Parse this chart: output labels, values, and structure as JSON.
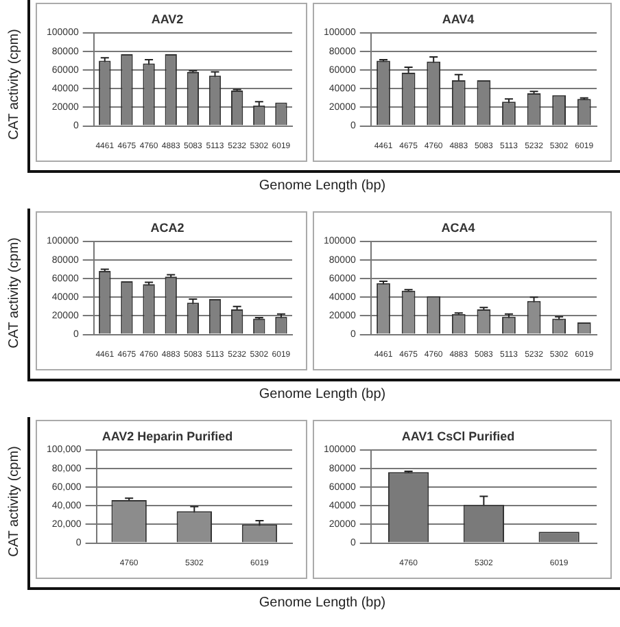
{
  "chart_data": [
    {
      "type": "bar",
      "title": "AAV2",
      "ylabel": "CAT activity (cpm)",
      "xlabel": "Genome Length (bp)",
      "categories": [
        "4461",
        "4675",
        "4760",
        "4883",
        "5083",
        "5113",
        "5232",
        "5302",
        "6019"
      ],
      "values": [
        70000,
        77000,
        67000,
        77000,
        58000,
        54000,
        38000,
        22000,
        25000
      ],
      "errors": [
        3000,
        null,
        4000,
        null,
        1000,
        4000,
        1000,
        4000,
        null
      ],
      "color": "#808080",
      "ylim": [
        0,
        100000
      ],
      "yticks": [
        0,
        20000,
        40000,
        60000,
        80000,
        100000
      ],
      "grid": "y"
    },
    {
      "type": "bar",
      "title": "AAV4",
      "categories": [
        "4461",
        "4675",
        "4760",
        "4883",
        "5083",
        "5113",
        "5232",
        "5302",
        "6019"
      ],
      "values": [
        70000,
        57000,
        69000,
        49000,
        49000,
        26000,
        35000,
        33000,
        29000
      ],
      "errors": [
        1000,
        6000,
        5000,
        6000,
        null,
        3000,
        2000,
        null,
        1000
      ],
      "color": "#808080",
      "ylim": [
        0,
        100000
      ],
      "yticks": [
        0,
        20000,
        40000,
        60000,
        80000,
        100000
      ],
      "grid": "y"
    },
    {
      "type": "bar",
      "title": "ACA2",
      "ylabel": "CAT activity (cpm)",
      "xlabel": "Genome Length (bp)",
      "categories": [
        "4461",
        "4675",
        "4760",
        "4883",
        "5083",
        "5113",
        "5232",
        "5302",
        "6019"
      ],
      "values": [
        68000,
        57000,
        54000,
        62000,
        34000,
        38000,
        27000,
        17000,
        19000
      ],
      "errors": [
        2000,
        null,
        2000,
        2000,
        4000,
        null,
        3000,
        1000,
        3000
      ],
      "color": "#808080",
      "ylim": [
        0,
        100000
      ],
      "yticks": [
        0,
        20000,
        40000,
        60000,
        80000,
        100000
      ],
      "grid": "y"
    },
    {
      "type": "bar",
      "title": "ACA4",
      "categories": [
        "4461",
        "4675",
        "4760",
        "4883",
        "5083",
        "5113",
        "5232",
        "5302",
        "6019"
      ],
      "values": [
        55000,
        47000,
        41000,
        22000,
        27000,
        19000,
        36000,
        17000,
        13000
      ],
      "errors": [
        2000,
        1000,
        null,
        1000,
        2000,
        3000,
        4000,
        2000,
        null
      ],
      "color": "#8c8c8c",
      "ylim": [
        0,
        100000
      ],
      "yticks": [
        0,
        20000,
        40000,
        60000,
        80000,
        100000
      ],
      "grid": "y"
    },
    {
      "type": "bar",
      "title": "AAV2 Heparin Purified",
      "ylabel": "CAT activity (cpm)",
      "xlabel": "Genome Length (bp)",
      "categories": [
        "4760",
        "5302",
        "6019"
      ],
      "values": [
        46000,
        34000,
        20000
      ],
      "errors": [
        2000,
        5000,
        4000
      ],
      "color": "#8c8c8c",
      "ylim": [
        0,
        100000
      ],
      "yticks": [
        {
          "value": 0,
          "label": "0"
        },
        {
          "value": 20000,
          "label": "20,000"
        },
        {
          "value": 40000,
          "label": "40,000"
        },
        {
          "value": 60000,
          "label": "60,000"
        },
        {
          "value": 80000,
          "label": "80,000"
        },
        {
          "value": 100000,
          "label": "100,000"
        }
      ],
      "grid": "y"
    },
    {
      "type": "bar",
      "title": "AAV1 CsCl Purified",
      "categories": [
        "4760",
        "5302",
        "6019"
      ],
      "values": [
        76000,
        41000,
        12000
      ],
      "errors": [
        1000,
        9000,
        null
      ],
      "color": "#7a7a7a",
      "ylim": [
        0,
        100000
      ],
      "yticks": [
        0,
        20000,
        40000,
        60000,
        80000,
        100000
      ],
      "grid": "y"
    }
  ]
}
